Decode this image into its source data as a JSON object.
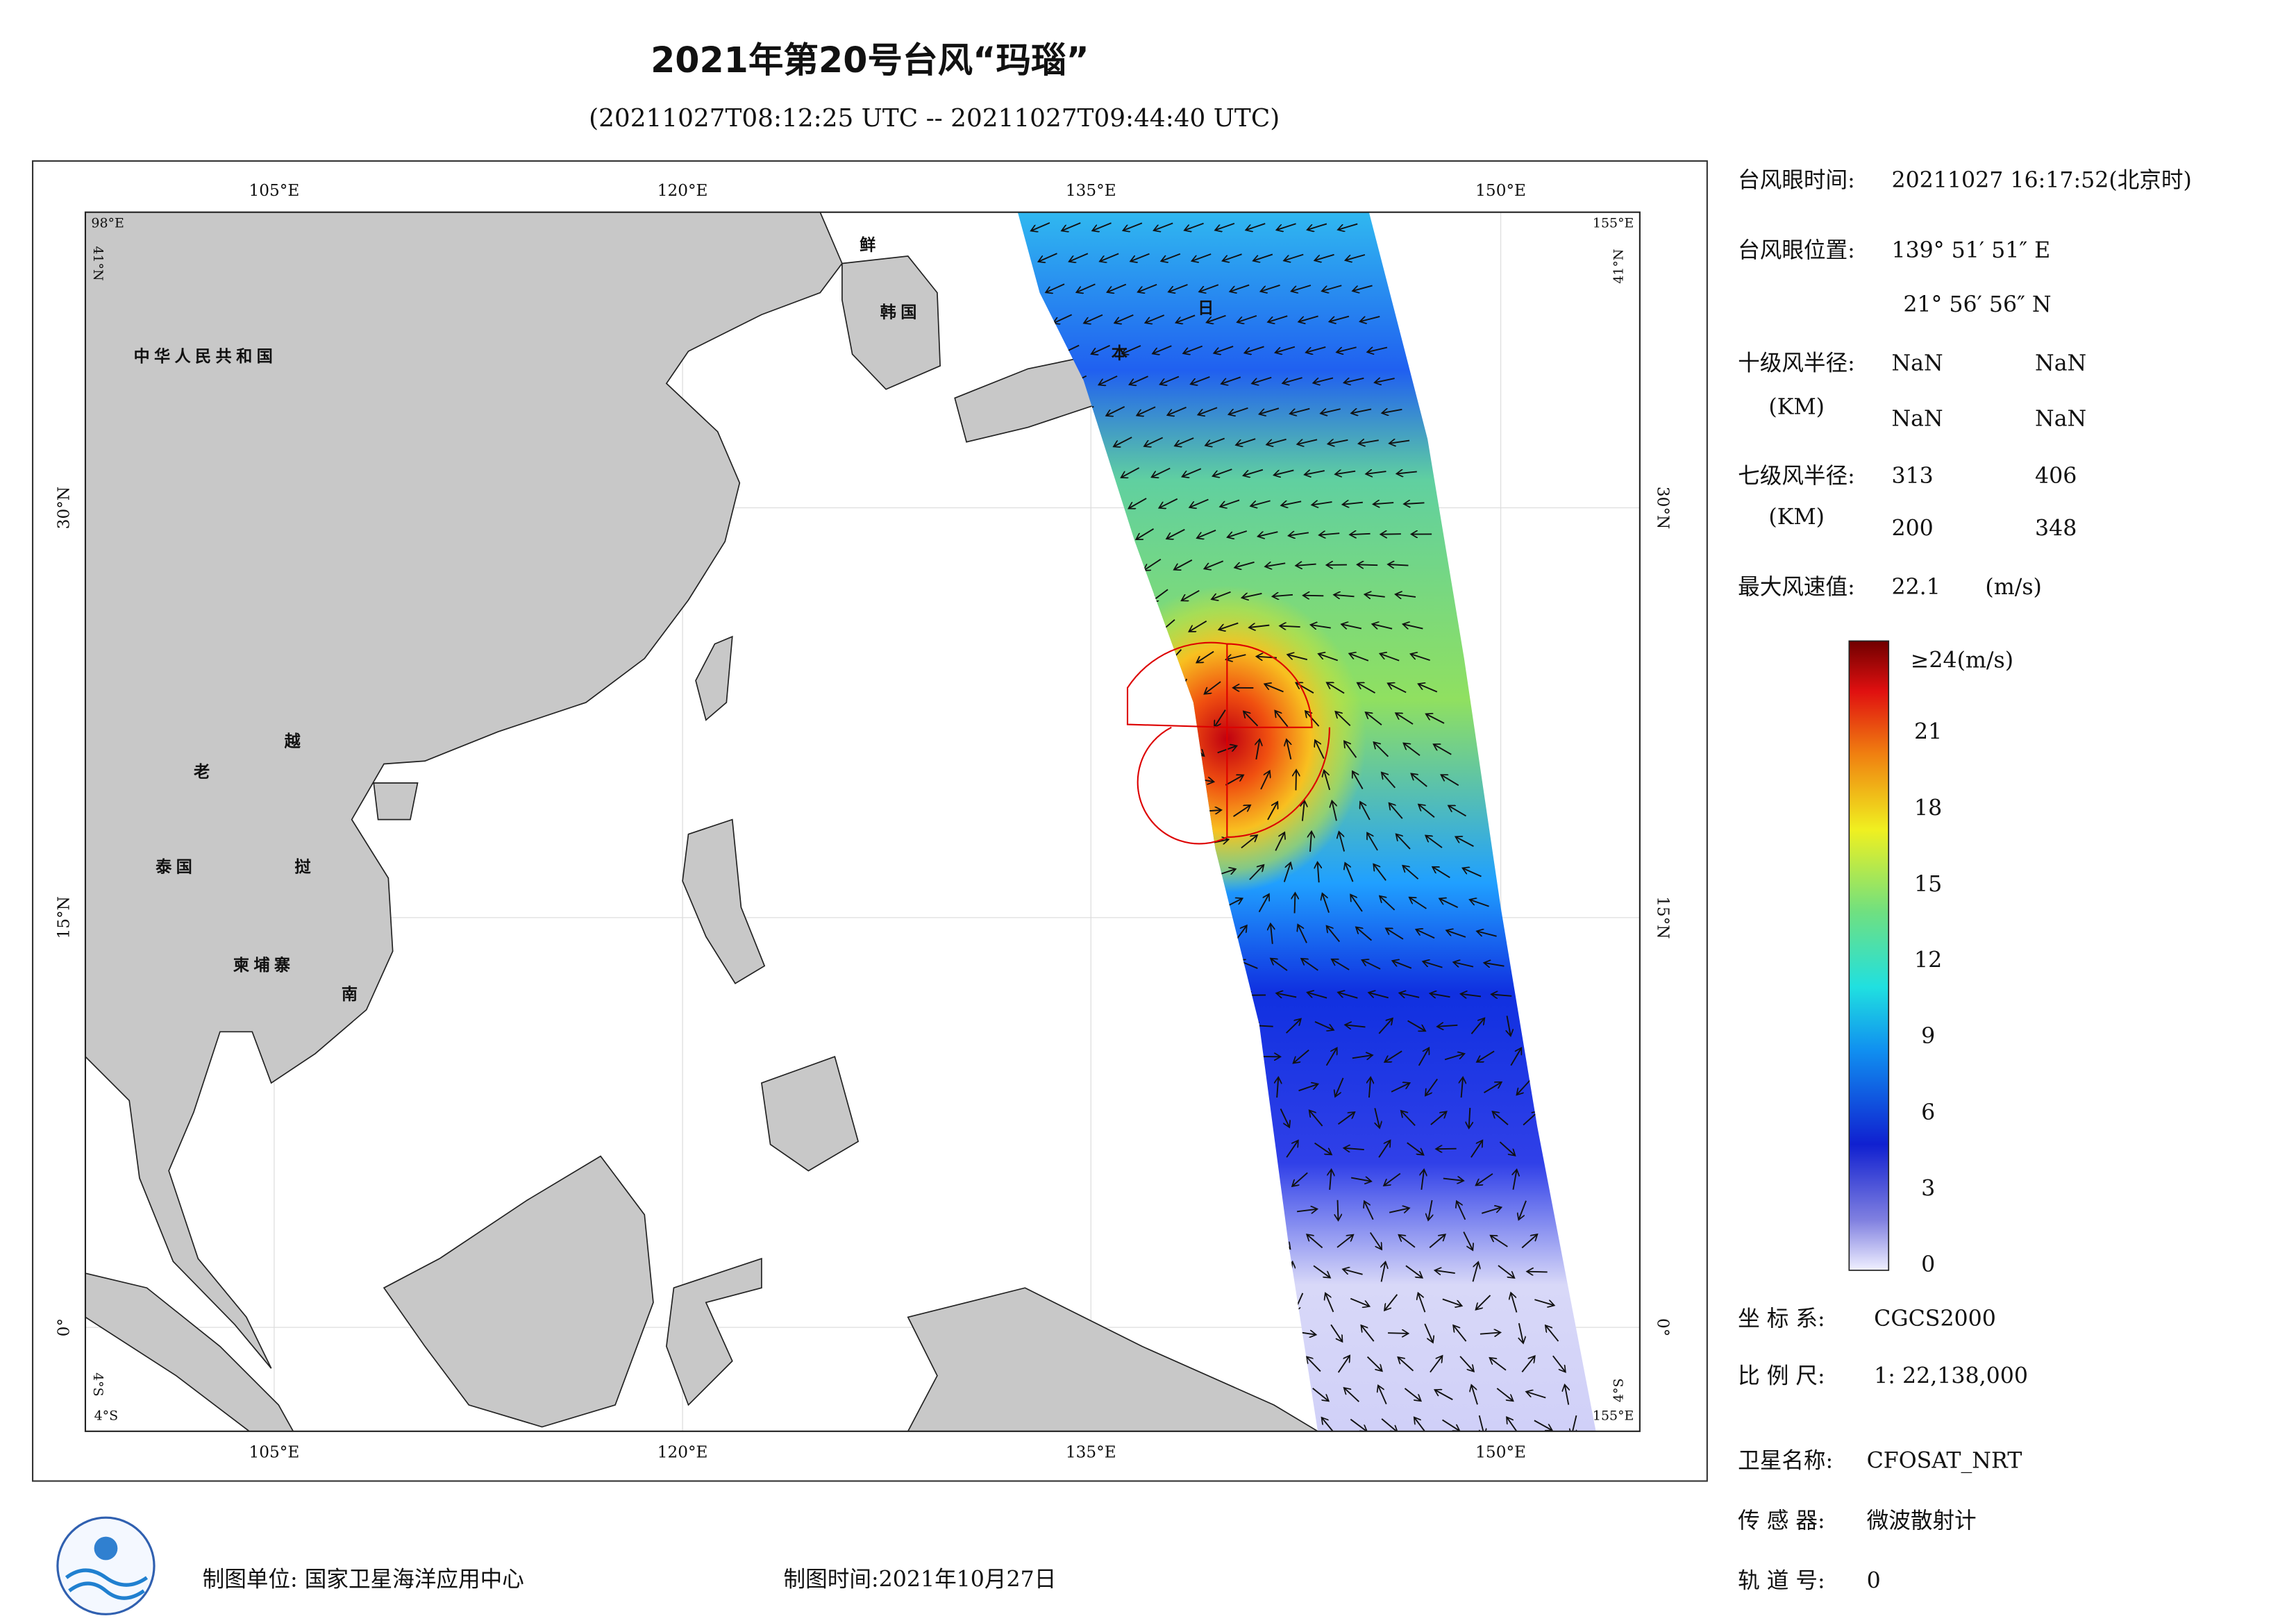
{
  "header": {
    "title": "2021年第20号台风“玛瑙”",
    "subtitle": "(20211027T08:12:25 UTC -- 20211027T09:44:40 UTC)"
  },
  "map": {
    "lon_labels": [
      "105°E",
      "120°E",
      "135°E",
      "150°E"
    ],
    "lat_labels": [
      "30°N",
      "15°N",
      "0°"
    ],
    "corners": {
      "top_left": [
        "98°E",
        "41°N"
      ],
      "top_right": [
        "155°E",
        "41°N"
      ],
      "bottom_left": [
        "4°S",
        "4°S"
      ],
      "bottom_right": [
        "4°S",
        "155°E"
      ]
    },
    "places": [
      "中华人民共和国",
      "鲜",
      "韩国",
      "日",
      "本",
      "老",
      "越",
      "泰国",
      "挝",
      "柬埔寨",
      "南"
    ]
  },
  "info": {
    "eye_time": {
      "label": "台风眼时间:",
      "value": "20211027 16:17:52(北京时)"
    },
    "eye_position": {
      "label": "台风眼位置:",
      "lon": "139° 51′ 51″ E",
      "lat": "21° 56′ 56″ N"
    },
    "r10": {
      "label": "十级风半径:",
      "unit": "(KM)",
      "values": [
        "NaN",
        "NaN",
        "NaN",
        "NaN"
      ]
    },
    "r7": {
      "label": "七级风半径:",
      "unit": "(KM)",
      "values": [
        313,
        406,
        200,
        348
      ]
    },
    "max_wind": {
      "label": "最大风速值:",
      "value": 22.1,
      "unit": "(m/s)"
    },
    "colorbar": {
      "top_label": "≥24(m/s)",
      "ticks": [
        0,
        3,
        6,
        9,
        12,
        15,
        18,
        21
      ],
      "unit": "(m/s)"
    },
    "crs": {
      "label": "坐 标 系:",
      "value": "CGCS2000"
    },
    "scale": {
      "label": "比 例 尺:",
      "value": "1: 22,138,000"
    },
    "satellite": {
      "label": "卫星名称:",
      "value": "CFOSAT_NRT"
    },
    "sensor": {
      "label": "传 感 器:",
      "value": "微波散射计"
    },
    "orbit": {
      "label": "轨 道 号:",
      "value": 0
    }
  },
  "footer": {
    "unit": "制图单位: 国家卫星海洋应用中心",
    "date": "制图时间:2021年10月27日"
  }
}
